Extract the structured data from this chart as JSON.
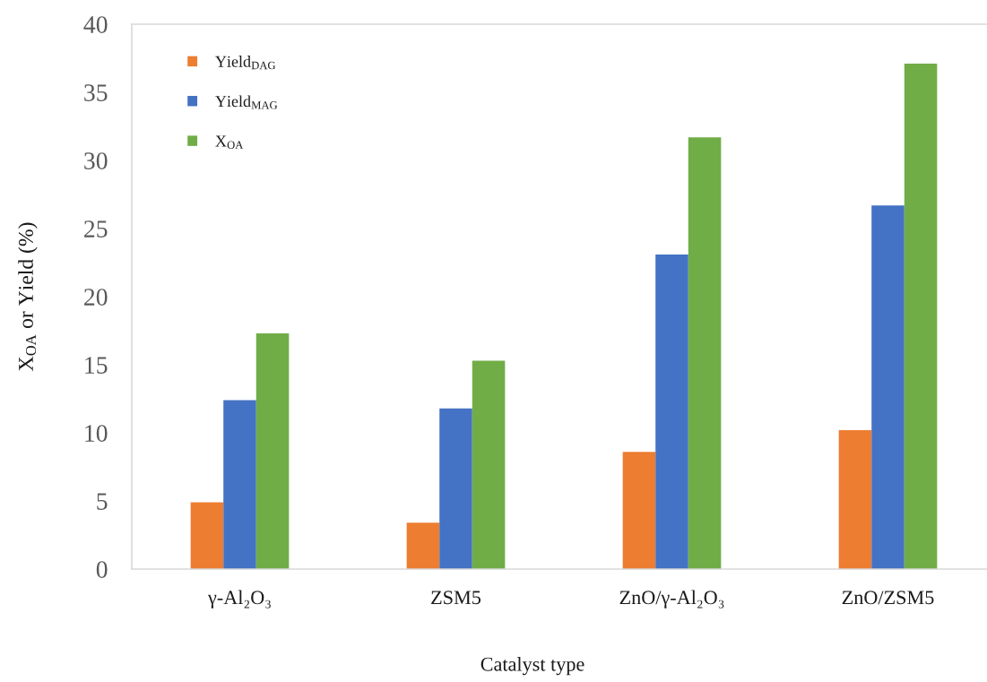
{
  "chart_data": {
    "type": "bar",
    "xlabel": "Catalyst type",
    "ylabel": "X$_{OA}$ or Yield (%)",
    "categories": [
      "γ-Al₂O₃",
      "ZSM5",
      "ZnO/γ-Al₂O₃",
      "ZnO/ZSM5"
    ],
    "series": [
      {
        "name": "Yield$_{DAG}$",
        "color": "#ed7d31",
        "values": [
          4.9,
          3.4,
          8.6,
          10.2
        ]
      },
      {
        "name": "Yield$_{MAG}$",
        "color": "#4472c4",
        "values": [
          12.4,
          11.8,
          23.1,
          26.7
        ]
      },
      {
        "name": "X$_{OA}$",
        "color": "#70ad47",
        "values": [
          17.3,
          15.3,
          31.7,
          37.1
        ]
      }
    ],
    "ylim": [
      0,
      40
    ],
    "yticks": [
      0,
      5,
      10,
      15,
      20,
      25,
      30,
      35,
      40
    ],
    "legend": "top left"
  }
}
